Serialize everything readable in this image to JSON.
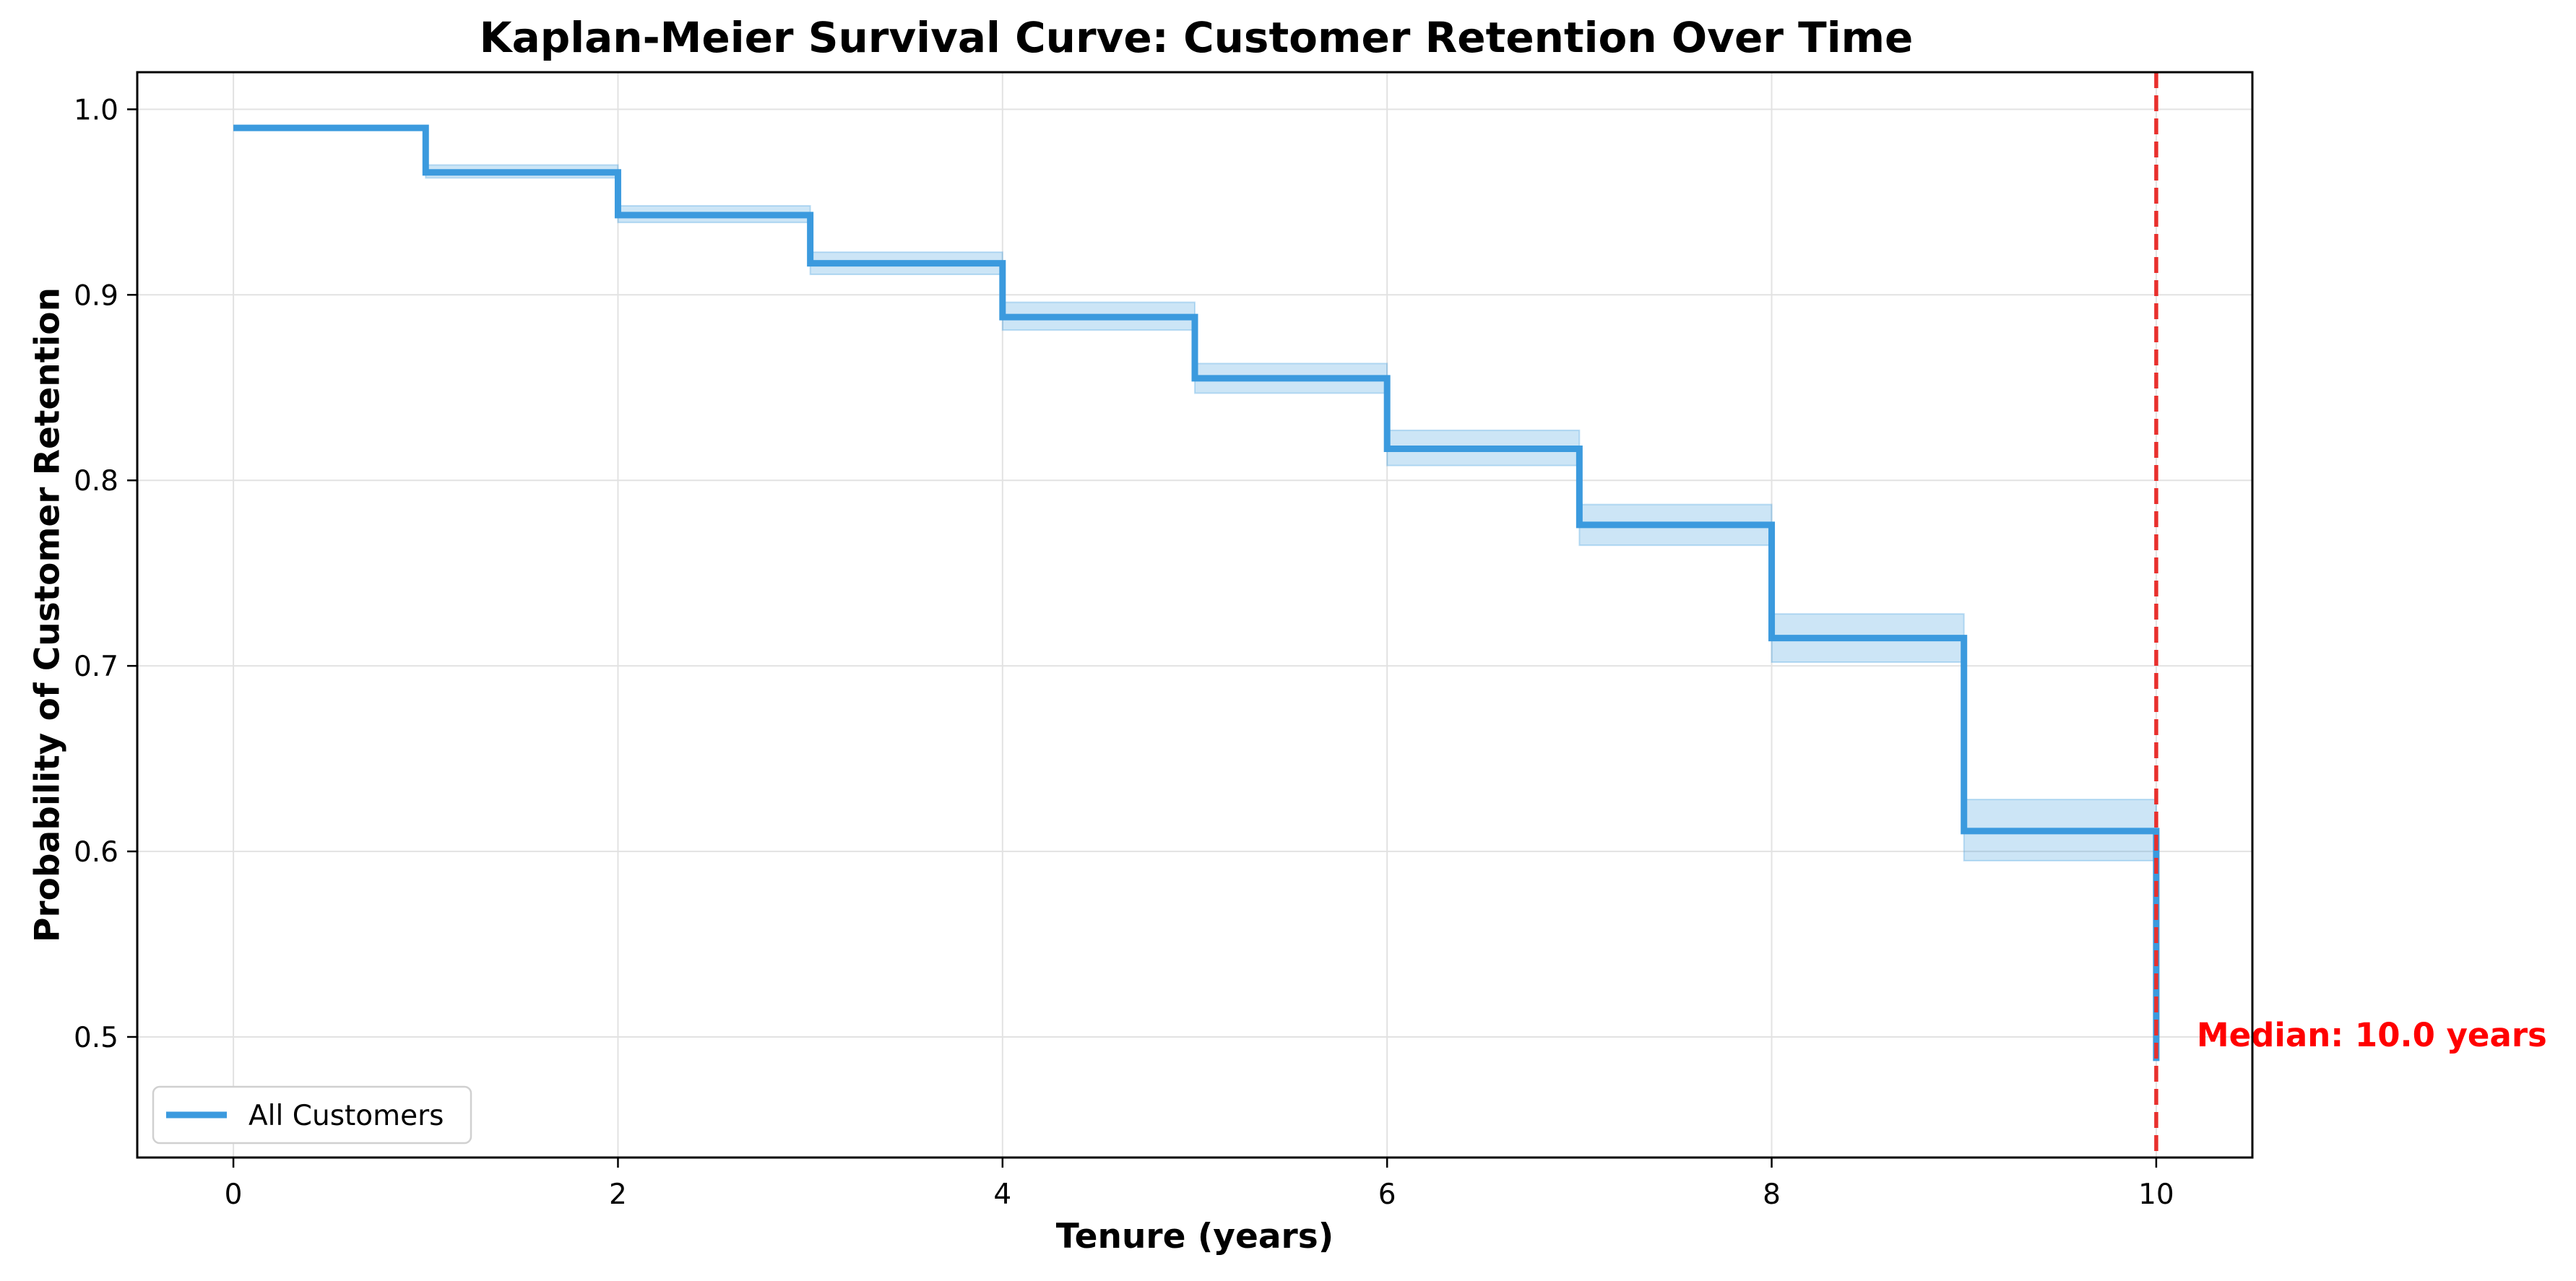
{
  "chart_data": {
    "type": "line",
    "title": "Kaplan-Meier Survival Curve: Customer Retention Over Time",
    "xlabel": "Tenure (years)",
    "ylabel": "Probability of Customer Retention",
    "xlim": [
      -0.5,
      10.5
    ],
    "ylim": [
      0.435,
      1.02
    ],
    "x_ticks": [
      0,
      2,
      4,
      6,
      8,
      10
    ],
    "x_tick_labels": [
      "0",
      "2",
      "4",
      "6",
      "8",
      "10"
    ],
    "y_ticks": [
      0.5,
      0.6,
      0.7,
      0.8,
      0.9,
      1.0
    ],
    "y_tick_labels": [
      "0.5",
      "0.6",
      "0.7",
      "0.8",
      "0.9",
      "1.0"
    ],
    "grid": true,
    "legend_position": "lower-left",
    "series": [
      {
        "name": "All Customers",
        "color": "#3b9ade",
        "step": true,
        "x": [
          0,
          1,
          2,
          3,
          4,
          5,
          6,
          7,
          8,
          9,
          10
        ],
        "y": [
          0.99,
          0.966,
          0.943,
          0.917,
          0.888,
          0.855,
          0.817,
          0.776,
          0.715,
          0.611,
          0.487
        ],
        "ci_lower": [
          0.99,
          0.963,
          0.939,
          0.911,
          0.881,
          0.847,
          0.808,
          0.765,
          0.702,
          0.595,
          0.487
        ],
        "ci_upper": [
          0.99,
          0.97,
          0.948,
          0.923,
          0.896,
          0.863,
          0.827,
          0.787,
          0.728,
          0.628,
          0.487
        ]
      }
    ],
    "median_line": {
      "x": 10.0,
      "color": "#e8302d",
      "label": "Median: 10.0 years",
      "label_color": "#ff0000"
    }
  }
}
